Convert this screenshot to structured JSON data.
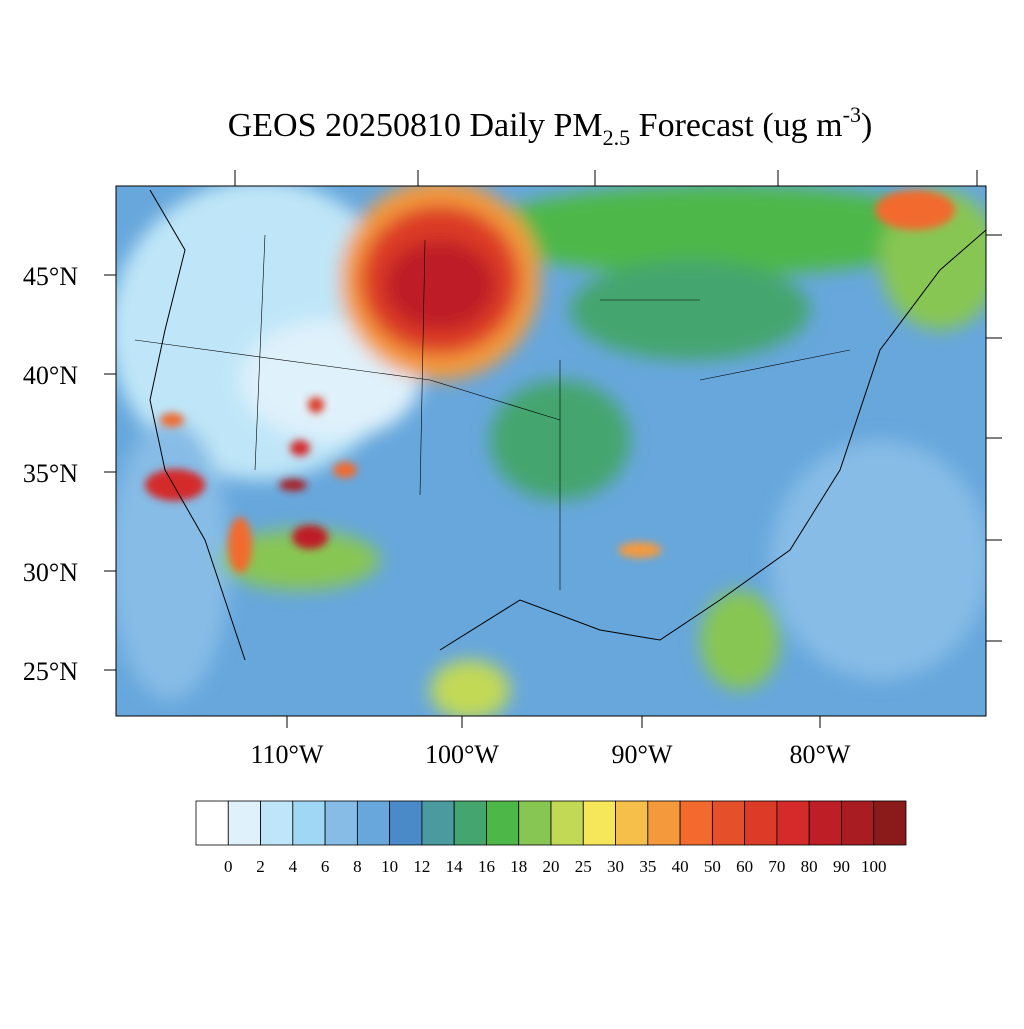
{
  "title": {
    "main": "GEOS 20250810 Daily PM",
    "sub": "2.5",
    "mid": " Forecast (ug m",
    "sup": "-3",
    "end": ")"
  },
  "lat_labels": [
    "45°N",
    "40°N",
    "35°N",
    "30°N",
    "25°N"
  ],
  "lon_labels": [
    "110°W",
    "100°W",
    "90°W",
    "80°W"
  ],
  "colorbar": {
    "labels": [
      "0",
      "2",
      "4",
      "6",
      "8",
      "10",
      "12",
      "14",
      "16",
      "18",
      "20",
      "25",
      "30",
      "35",
      "40",
      "50",
      "60",
      "70",
      "80",
      "90",
      "100"
    ],
    "colors": [
      "#ffffff",
      "#dff1fb",
      "#bfe6f8",
      "#9fd7f5",
      "#86bce6",
      "#67a7dc",
      "#4a8ac8",
      "#4a9aa0",
      "#45a56e",
      "#4db848",
      "#88c653",
      "#c2d956",
      "#f6e65a",
      "#f6bf4a",
      "#f49a3c",
      "#f26a2d",
      "#e54f2a",
      "#dc3b27",
      "#d42a2a",
      "#be1f26",
      "#a81c22",
      "#8b1a1a"
    ]
  }
}
